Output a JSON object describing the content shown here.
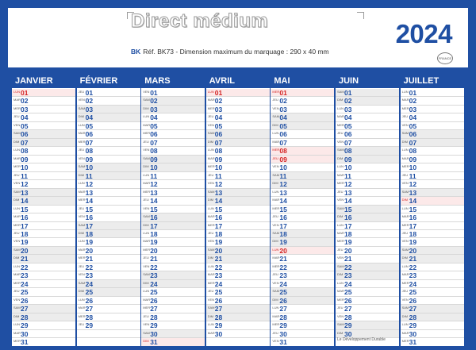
{
  "header": {
    "title": "Direct médium",
    "ref_icon": "BK",
    "subtitle": "Réf. BK73 - Dimension maximum du marquage : 290 x 40 mm",
    "year": "2024",
    "stamp": "FRANCE"
  },
  "footer": {
    "promo": "Le Développement Durable"
  },
  "months": [
    {
      "name": "JANVIER",
      "first_day": 0,
      "length": 31,
      "holidays": [
        1
      ]
    },
    {
      "name": "FÉVRIER",
      "first_day": 3,
      "length": 29,
      "holidays": []
    },
    {
      "name": "MARS",
      "first_day": 4,
      "length": 31,
      "holidays": [
        31
      ]
    },
    {
      "name": "AVRIL",
      "first_day": 0,
      "length": 30,
      "holidays": [
        1
      ]
    },
    {
      "name": "MAI",
      "first_day": 2,
      "length": 31,
      "holidays": [
        1,
        8,
        9,
        20
      ]
    },
    {
      "name": "JUIN",
      "first_day": 5,
      "length": 30,
      "holidays": []
    },
    {
      "name": "JUILLET",
      "first_day": 0,
      "length": 31,
      "holidays": [
        14
      ]
    }
  ],
  "weekday_abbr": [
    "LUN",
    "MAR",
    "MER",
    "JEU",
    "VEN",
    "SAM",
    "DIM"
  ],
  "colors": {
    "brand": "#1f4fa3",
    "holiday": "#d32323",
    "weekend": "#ececec"
  }
}
